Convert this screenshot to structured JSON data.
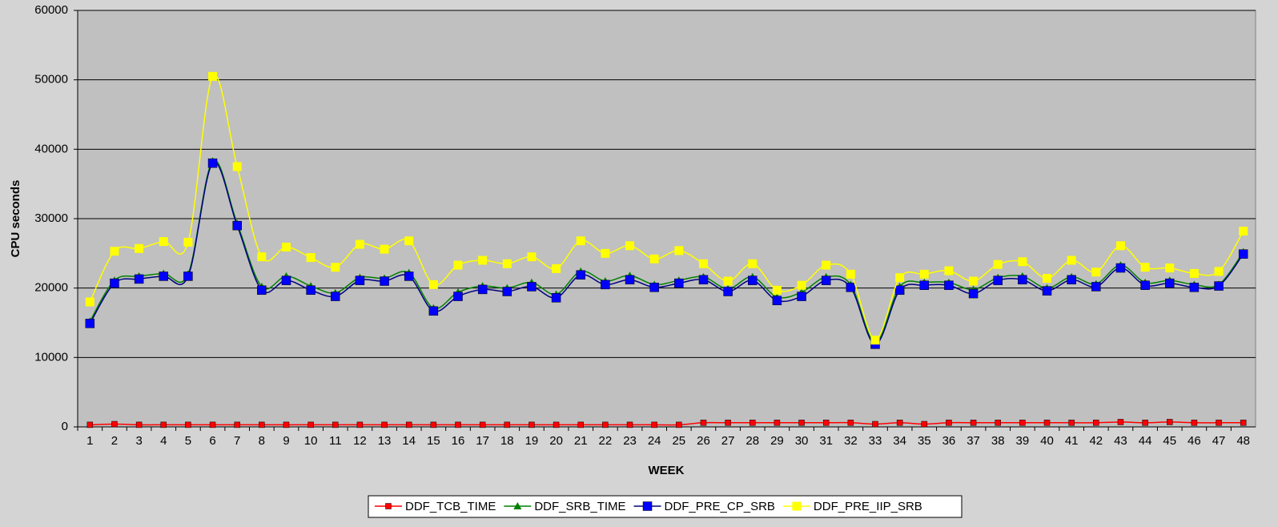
{
  "chart_data": {
    "type": "line",
    "x_label": "WEEK",
    "y_label": "CPU seconds",
    "categories": [
      "1",
      "2",
      "3",
      "4",
      "5",
      "6",
      "7",
      "8",
      "9",
      "10",
      "11",
      "12",
      "13",
      "14",
      "15",
      "16",
      "17",
      "18",
      "19",
      "20",
      "21",
      "22",
      "23",
      "24",
      "25",
      "26",
      "27",
      "28",
      "29",
      "30",
      "31",
      "32",
      "33",
      "34",
      "35",
      "36",
      "37",
      "38",
      "39",
      "40",
      "41",
      "42",
      "43",
      "44",
      "45",
      "46",
      "47",
      "48"
    ],
    "ylim": [
      0,
      60000
    ],
    "yticks": [
      0,
      10000,
      20000,
      30000,
      40000,
      50000,
      60000
    ],
    "grid": true,
    "legend": "bottom",
    "series": [
      {
        "name": "DDF_TCB_TIME",
        "color": "#ff0000",
        "marker": "square-small",
        "values": [
          300,
          400,
          300,
          300,
          300,
          300,
          300,
          300,
          300,
          300,
          300,
          300,
          300,
          300,
          300,
          300,
          300,
          300,
          300,
          300,
          300,
          300,
          300,
          300,
          300,
          600,
          600,
          600,
          600,
          600,
          600,
          600,
          400,
          600,
          400,
          600,
          600,
          600,
          600,
          600,
          600,
          600,
          700,
          600,
          700,
          600,
          600,
          600
        ]
      },
      {
        "name": "DDF_SRB_TIME",
        "color": "#008000",
        "marker": "triangle",
        "values": [
          15200,
          21100,
          21700,
          22100,
          22000,
          38300,
          29300,
          20200,
          21700,
          20300,
          19300,
          21500,
          21400,
          22200,
          17100,
          19400,
          20300,
          20000,
          20800,
          19100,
          22400,
          21000,
          21800,
          20500,
          21100,
          21600,
          19900,
          21600,
          18700,
          19400,
          21600,
          20500,
          12200,
          20200,
          20800,
          20800,
          19800,
          21500,
          21700,
          20000,
          21600,
          20600,
          23300,
          20800,
          21100,
          20500,
          20500,
          25200
        ]
      },
      {
        "name": "DDF_PRE_CP_SRB",
        "color": "#0000ff",
        "marker": "square",
        "values": [
          14900,
          20700,
          21300,
          21700,
          21700,
          38000,
          29000,
          19700,
          21100,
          19700,
          18800,
          21100,
          21000,
          21700,
          16700,
          18800,
          19800,
          19500,
          20200,
          18600,
          21900,
          20500,
          21200,
          20100,
          20700,
          21200,
          19500,
          21100,
          18200,
          18800,
          21100,
          20100,
          11900,
          19700,
          20400,
          20400,
          19200,
          21100,
          21200,
          19600,
          21200,
          20200,
          22900,
          20400,
          20700,
          20100,
          20300,
          24900
        ]
      },
      {
        "name": "DDF_PRE_IIP_SRB",
        "color": "#ffff00",
        "marker": "square",
        "values": [
          18000,
          25300,
          25700,
          26700,
          26600,
          50500,
          37500,
          24500,
          25900,
          24400,
          23000,
          26300,
          25600,
          26800,
          20500,
          23300,
          24000,
          23500,
          24500,
          22800,
          26800,
          25000,
          26100,
          24200,
          25400,
          23500,
          21000,
          23500,
          19700,
          20400,
          23300,
          22000,
          12500,
          21500,
          22000,
          22500,
          21000,
          23400,
          23800,
          21400,
          24000,
          22300,
          26100,
          23000,
          22900,
          22100,
          22400,
          28200
        ]
      }
    ]
  }
}
